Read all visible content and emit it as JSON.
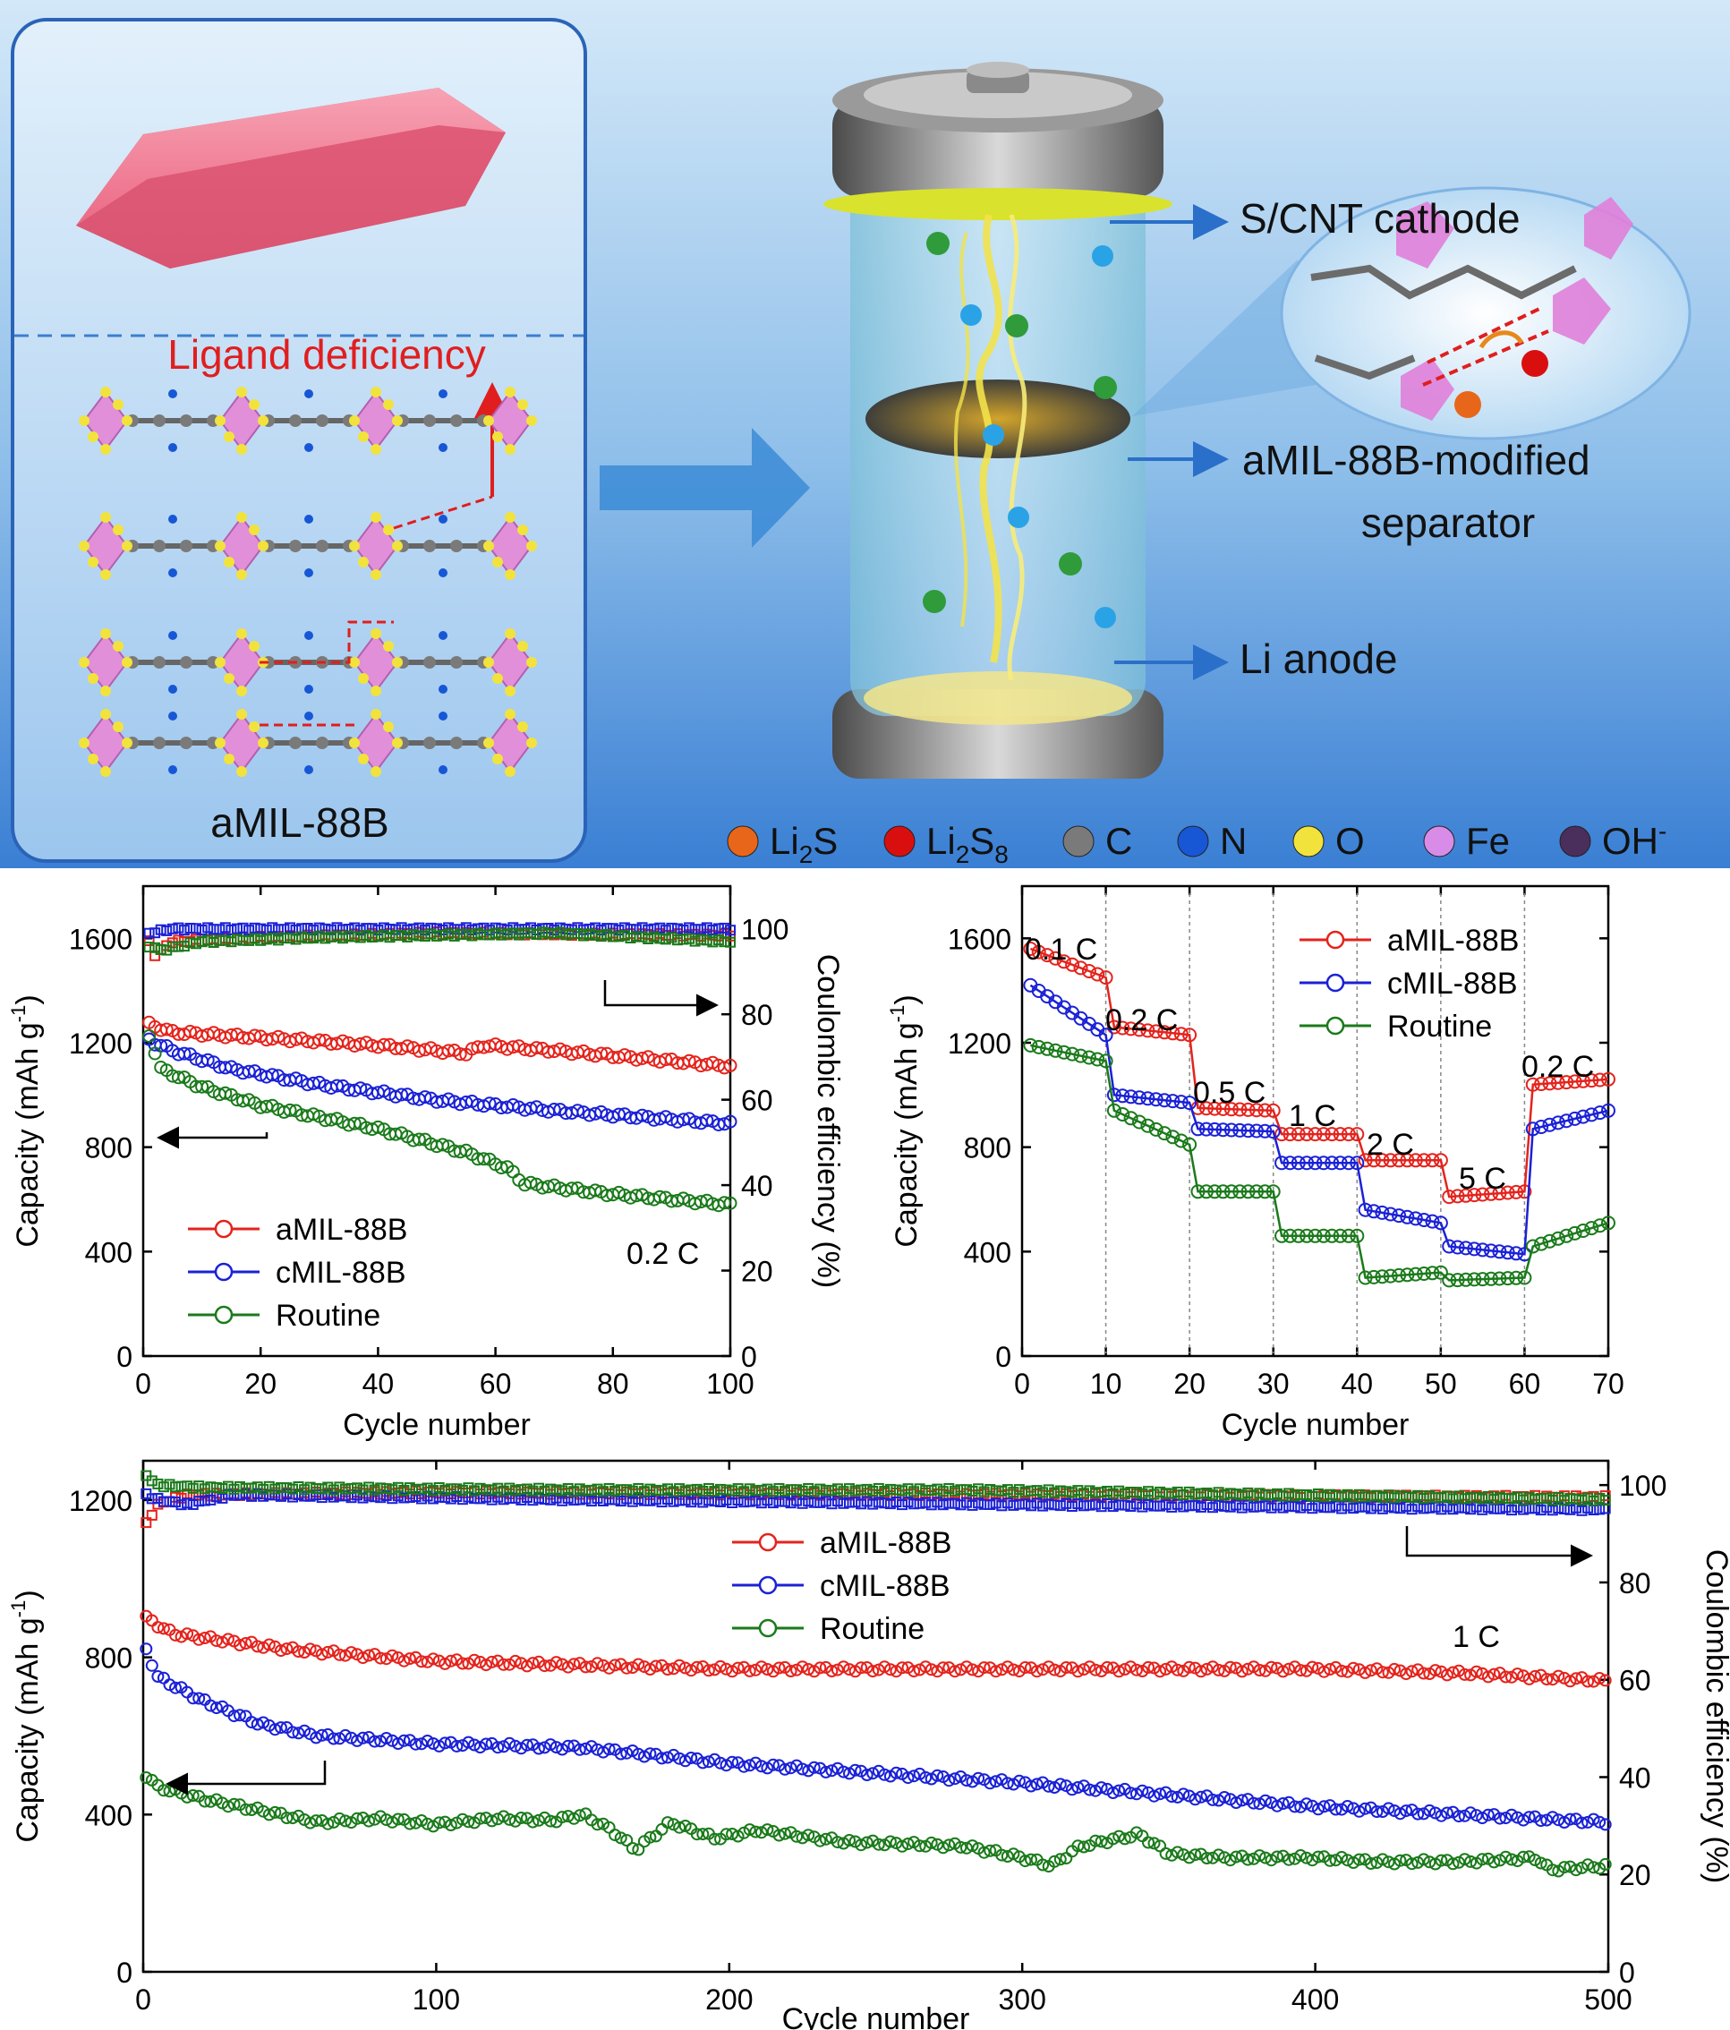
{
  "schematic": {
    "ligand_deficiency": "Ligand deficiency",
    "amil_label": "aMIL-88B",
    "cathode": "S/CNT cathode",
    "separator_line1": "aMIL-88B-modified",
    "separator_line2": "separator",
    "anode": "Li anode",
    "legend": [
      {
        "label": "Li2S",
        "color": "#e8661a"
      },
      {
        "label": "Li2S8",
        "color": "#d90f0f"
      },
      {
        "label": "C",
        "color": "#7a7a7a"
      },
      {
        "label": "N",
        "color": "#1757d6"
      },
      {
        "label": "O",
        "color": "#f2e33c"
      },
      {
        "label": "Fe",
        "color": "#d98be8"
      },
      {
        "label": "OH-",
        "color": "#4a2e5c"
      }
    ],
    "colors": {
      "background_top": "#cfe5f7",
      "background_bottom": "#2f78d0",
      "crystal": "#ee6b86",
      "ligand_red": "#e01e1e"
    }
  },
  "chart_data": [
    {
      "type": "scatter",
      "id": "cycling-0.2C",
      "xlabel": "Cycle number",
      "ylabel": "Capacity (mAh g-1)",
      "y2label": "Coulombic efficiency (%)",
      "xlim": [
        0,
        100
      ],
      "ylim": [
        0,
        1800
      ],
      "y2lim": [
        0,
        110
      ],
      "xticks": [
        "0",
        "20",
        "40",
        "60",
        "80",
        "100"
      ],
      "yticks": [
        "0",
        "400",
        "800",
        "1200",
        "1600"
      ],
      "y2ticks": [
        "0",
        "20",
        "40",
        "60",
        "80",
        "100"
      ],
      "annotation": "0.2 C",
      "legend": [
        "aMIL-88B",
        "cMIL-88B",
        "Routine"
      ],
      "series": [
        {
          "name": "aMIL-88B",
          "color": "#e4231c",
          "capacity": [
            [
              1,
              1270
            ],
            [
              5,
              1240
            ],
            [
              20,
              1220
            ],
            [
              40,
              1190
            ],
            [
              55,
              1160
            ],
            [
              58,
              1190
            ],
            [
              70,
              1170
            ],
            [
              100,
              1110
            ]
          ],
          "efficiency": [
            [
              1,
              97
            ],
            [
              2,
              94
            ],
            [
              5,
              97
            ],
            [
              20,
              98
            ],
            [
              50,
              99
            ],
            [
              100,
              98.5
            ]
          ]
        },
        {
          "name": "cMIL-88B",
          "color": "#1a21d6",
          "capacity": [
            [
              1,
              1210
            ],
            [
              5,
              1170
            ],
            [
              15,
              1100
            ],
            [
              30,
              1040
            ],
            [
              50,
              980
            ],
            [
              70,
              940
            ],
            [
              100,
              890
            ]
          ],
          "efficiency": [
            [
              1,
              99
            ],
            [
              5,
              100
            ],
            [
              50,
              100
            ],
            [
              100,
              100
            ]
          ]
        },
        {
          "name": "Routine",
          "color": "#1a7a1a",
          "capacity": [
            [
              1,
              1230
            ],
            [
              3,
              1100
            ],
            [
              10,
              1030
            ],
            [
              20,
              960
            ],
            [
              40,
              870
            ],
            [
              55,
              780
            ],
            [
              62,
              720
            ],
            [
              65,
              660
            ],
            [
              80,
              620
            ],
            [
              100,
              580
            ]
          ],
          "efficiency": [
            [
              1,
              96
            ],
            [
              3,
              95
            ],
            [
              10,
              97
            ],
            [
              30,
              98
            ],
            [
              70,
              99
            ],
            [
              100,
              97
            ]
          ]
        }
      ]
    },
    {
      "type": "scatter",
      "id": "rate-performance",
      "xlabel": "Cycle number",
      "ylabel": "Capacity (mAh g-1)",
      "xlim": [
        0,
        70
      ],
      "ylim": [
        0,
        1800
      ],
      "xticks": [
        "0",
        "10",
        "20",
        "30",
        "40",
        "50",
        "60",
        "70"
      ],
      "yticks": [
        "0",
        "400",
        "800",
        "1200",
        "1600"
      ],
      "rate_labels": [
        "0.1 C",
        "0.2 C",
        "0.5 C",
        "1 C",
        "2 C",
        "5 C",
        "0.2 C"
      ],
      "legend": [
        "aMIL-88B",
        "cMIL-88B",
        "Routine"
      ],
      "series": [
        {
          "name": "aMIL-88B",
          "color": "#e4231c",
          "segments": [
            [
              1,
              10,
              1560,
              1450
            ],
            [
              11,
              20,
              1260,
              1230
            ],
            [
              21,
              30,
              950,
              940
            ],
            [
              31,
              40,
              850,
              850
            ],
            [
              41,
              50,
              750,
              750
            ],
            [
              51,
              60,
              610,
              630
            ],
            [
              61,
              70,
              1040,
              1060
            ]
          ]
        },
        {
          "name": "cMIL-88B",
          "color": "#1a21d6",
          "segments": [
            [
              1,
              10,
              1420,
              1230
            ],
            [
              11,
              20,
              1000,
              970
            ],
            [
              21,
              30,
              870,
              860
            ],
            [
              31,
              40,
              740,
              740
            ],
            [
              41,
              50,
              560,
              510
            ],
            [
              51,
              60,
              420,
              390
            ],
            [
              61,
              70,
              870,
              940
            ]
          ]
        },
        {
          "name": "Routine",
          "color": "#1a7a1a",
          "segments": [
            [
              1,
              10,
              1190,
              1130
            ],
            [
              11,
              20,
              940,
              810
            ],
            [
              21,
              30,
              630,
              630
            ],
            [
              31,
              40,
              460,
              460
            ],
            [
              41,
              50,
              300,
              320
            ],
            [
              51,
              60,
              290,
              300
            ],
            [
              61,
              70,
              420,
              510
            ]
          ]
        }
      ]
    },
    {
      "type": "scatter",
      "id": "cycling-1C",
      "xlabel": "Cycle number",
      "ylabel": "Capacity (mAh g-1)",
      "y2label": "Coulombic efficiency (%)",
      "xlim": [
        0,
        500
      ],
      "ylim": [
        0,
        1300
      ],
      "y2lim": [
        0,
        105
      ],
      "xticks": [
        "0",
        "100",
        "200",
        "300",
        "400",
        "500"
      ],
      "yticks": [
        "0",
        "400",
        "800",
        "1200"
      ],
      "y2ticks": [
        "0",
        "20",
        "40",
        "60",
        "80",
        "100"
      ],
      "annotation": "1 C",
      "legend": [
        "aMIL-88B",
        "cMIL-88B",
        "Routine"
      ],
      "series": [
        {
          "name": "aMIL-88B",
          "color": "#e4231c",
          "capacity": [
            [
              1,
              900
            ],
            [
              10,
              860
            ],
            [
              50,
              820
            ],
            [
              100,
              790
            ],
            [
              200,
              770
            ],
            [
              300,
              770
            ],
            [
              400,
              770
            ],
            [
              450,
              760
            ],
            [
              500,
              740
            ]
          ],
          "efficiency": [
            [
              1,
              92
            ],
            [
              5,
              96
            ],
            [
              15,
              98
            ],
            [
              100,
              98.5
            ],
            [
              500,
              97.5
            ]
          ]
        },
        {
          "name": "cMIL-88B",
          "color": "#1a21d6",
          "capacity": [
            [
              1,
              820
            ],
            [
              5,
              750
            ],
            [
              20,
              690
            ],
            [
              40,
              630
            ],
            [
              60,
              600
            ],
            [
              100,
              580
            ],
            [
              150,
              570
            ],
            [
              200,
              530
            ],
            [
              300,
              480
            ],
            [
              400,
              420
            ],
            [
              450,
              400
            ],
            [
              500,
              380
            ]
          ],
          "efficiency": [
            [
              1,
              98
            ],
            [
              5,
              97
            ],
            [
              15,
              96
            ],
            [
              30,
              98
            ],
            [
              150,
              97
            ],
            [
              300,
              96
            ],
            [
              500,
              95
            ]
          ]
        },
        {
          "name": "Routine",
          "color": "#1a7a1a",
          "capacity": [
            [
              1,
              500
            ],
            [
              5,
              470
            ],
            [
              20,
              440
            ],
            [
              40,
              410
            ],
            [
              60,
              380
            ],
            [
              80,
              390
            ],
            [
              100,
              375
            ],
            [
              120,
              390
            ],
            [
              140,
              385
            ],
            [
              150,
              400
            ],
            [
              160,
              360
            ],
            [
              168,
              310
            ],
            [
              180,
              380
            ],
            [
              195,
              340
            ],
            [
              210,
              360
            ],
            [
              240,
              330
            ],
            [
              280,
              320
            ],
            [
              300,
              290
            ],
            [
              310,
              270
            ],
            [
              320,
              320
            ],
            [
              340,
              350
            ],
            [
              350,
              300
            ],
            [
              370,
              290
            ],
            [
              400,
              290
            ],
            [
              420,
              280
            ],
            [
              450,
              280
            ],
            [
              475,
              290
            ],
            [
              480,
              260
            ],
            [
              500,
              270
            ]
          ],
          "efficiency": [
            [
              1,
              102
            ],
            [
              5,
              100
            ],
            [
              20,
              99.5
            ],
            [
              150,
              99
            ],
            [
              280,
              99
            ],
            [
              500,
              97
            ]
          ]
        }
      ]
    }
  ]
}
